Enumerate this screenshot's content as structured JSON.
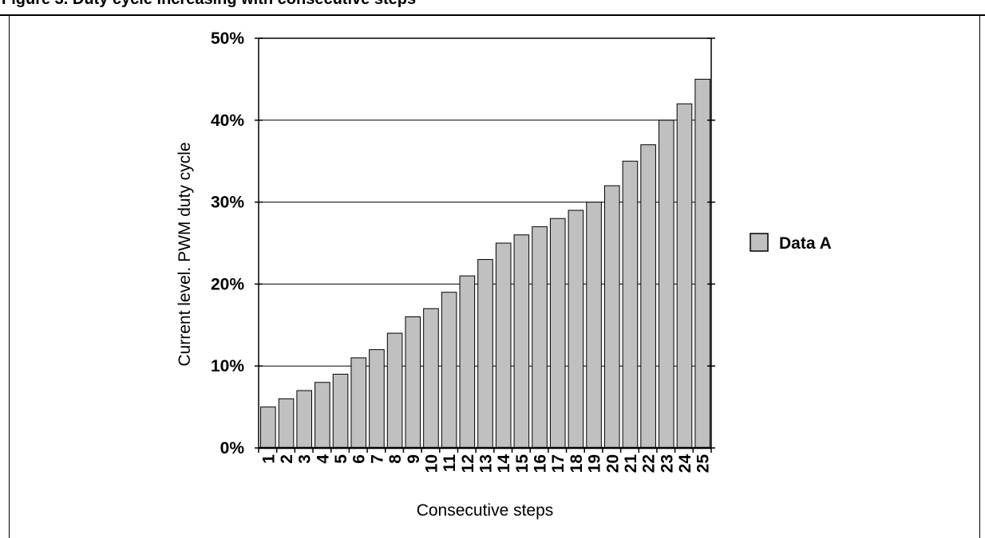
{
  "caption": "Figure 3. Duty cycle increasing with consecutive steps",
  "chart_data": {
    "type": "bar",
    "categories": [
      "1",
      "2",
      "3",
      "4",
      "5",
      "6",
      "7",
      "8",
      "9",
      "10",
      "11",
      "12",
      "13",
      "14",
      "15",
      "16",
      "17",
      "18",
      "19",
      "20",
      "21",
      "22",
      "23",
      "24",
      "25"
    ],
    "series": [
      {
        "name": "Data A",
        "values": [
          5,
          6,
          7,
          8,
          9,
          11,
          12,
          14,
          16,
          17,
          19,
          21,
          23,
          25,
          26,
          27,
          28,
          29,
          30,
          32,
          35,
          37,
          40,
          42,
          45
        ],
        "color": "#c0c0c0"
      }
    ],
    "y_ticks": [
      "0%",
      "10%",
      "20%",
      "30%",
      "40%",
      "50%"
    ],
    "xlabel": "Consecutive steps",
    "ylabel": "Current level. PWM duty cycle",
    "ylim": [
      0,
      50
    ],
    "grid": true,
    "legend": "right"
  }
}
